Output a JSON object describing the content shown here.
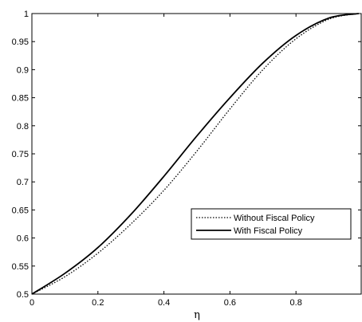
{
  "chart_data": {
    "type": "line",
    "title": "",
    "xlabel": "η",
    "ylabel": "",
    "xlim": [
      0,
      1
    ],
    "ylim": [
      0.5,
      1
    ],
    "x_ticks": [
      0,
      0.2,
      0.4,
      0.6,
      0.8
    ],
    "x_tick_labels": [
      "0",
      "0.2",
      "0.4",
      "0.6",
      "0.8"
    ],
    "y_ticks": [
      0.5,
      0.55,
      0.6,
      0.65,
      0.7,
      0.75,
      0.8,
      0.85,
      0.9,
      0.95,
      1
    ],
    "y_tick_labels": [
      "0.5",
      "0.55",
      "0.6",
      "0.65",
      "0.7",
      "0.75",
      "0.8",
      "0.85",
      "0.9",
      "0.95",
      "1"
    ],
    "grid": false,
    "legend_position": "center-right",
    "x": [
      0,
      0.1,
      0.2,
      0.3,
      0.4,
      0.5,
      0.6,
      0.7,
      0.8,
      0.9,
      0.99
    ],
    "series": [
      {
        "name": "Without Fiscal Policy",
        "style": "dotted",
        "color": "#000000",
        "values": [
          0.5,
          0.531,
          0.573,
          0.625,
          0.685,
          0.755,
          0.83,
          0.9,
          0.955,
          0.99,
          1.0
        ]
      },
      {
        "name": "With Fiscal Policy",
        "style": "solid",
        "color": "#000000",
        "values": [
          0.5,
          0.537,
          0.583,
          0.642,
          0.71,
          0.782,
          0.85,
          0.912,
          0.961,
          0.992,
          1.0
        ]
      }
    ]
  }
}
